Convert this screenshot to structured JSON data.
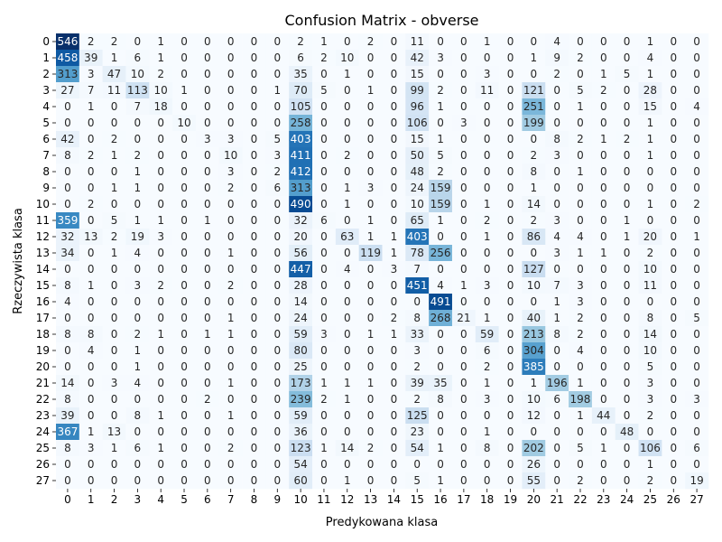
{
  "chart_data": {
    "type": "heatmap",
    "title": "Confusion Matrix - obverse",
    "xlabel": "Predykowana klasa",
    "ylabel": "Rzeczywista klasa",
    "x_ticks": [
      "0",
      "1",
      "2",
      "3",
      "4",
      "5",
      "6",
      "7",
      "8",
      "9",
      "10",
      "11",
      "12",
      "13",
      "14",
      "15",
      "16",
      "17",
      "18",
      "19",
      "20",
      "21",
      "22",
      "23",
      "24",
      "25",
      "26",
      "27"
    ],
    "y_ticks": [
      "0",
      "1",
      "2",
      "3",
      "4",
      "5",
      "6",
      "7",
      "8",
      "9",
      "10",
      "11",
      "12",
      "13",
      "14",
      "15",
      "16",
      "17",
      "18",
      "19",
      "20",
      "21",
      "22",
      "23",
      "24",
      "25",
      "26",
      "27"
    ],
    "colormap": {
      "low": "#f7fbff",
      "mid": "#6baed6",
      "high": "#08306b"
    },
    "value_range": [
      0,
      546
    ],
    "matrix": [
      [
        546,
        2,
        2,
        0,
        1,
        0,
        0,
        0,
        0,
        0,
        2,
        1,
        0,
        2,
        0,
        11,
        0,
        0,
        1,
        0,
        0,
        4,
        0,
        0,
        0,
        1,
        0,
        0
      ],
      [
        458,
        39,
        1,
        6,
        1,
        0,
        0,
        0,
        0,
        0,
        6,
        2,
        10,
        0,
        0,
        42,
        3,
        0,
        0,
        0,
        1,
        9,
        2,
        0,
        0,
        4,
        0,
        0
      ],
      [
        313,
        3,
        47,
        10,
        2,
        0,
        0,
        0,
        0,
        0,
        35,
        0,
        1,
        0,
        0,
        15,
        0,
        0,
        3,
        0,
        0,
        2,
        0,
        1,
        5,
        1,
        0,
        0
      ],
      [
        27,
        7,
        11,
        113,
        10,
        1,
        0,
        0,
        0,
        1,
        70,
        5,
        0,
        1,
        0,
        99,
        2,
        0,
        11,
        0,
        121,
        0,
        5,
        2,
        0,
        28,
        0,
        0
      ],
      [
        0,
        1,
        0,
        7,
        18,
        0,
        0,
        0,
        0,
        0,
        105,
        0,
        0,
        0,
        0,
        96,
        1,
        0,
        0,
        0,
        251,
        0,
        1,
        0,
        0,
        15,
        0,
        4
      ],
      [
        0,
        0,
        0,
        0,
        0,
        10,
        0,
        0,
        0,
        0,
        258,
        0,
        0,
        0,
        0,
        106,
        0,
        3,
        0,
        0,
        199,
        0,
        0,
        0,
        0,
        1,
        0,
        0
      ],
      [
        42,
        0,
        2,
        0,
        0,
        0,
        3,
        3,
        0,
        5,
        403,
        0,
        0,
        0,
        0,
        15,
        1,
        0,
        0,
        0,
        0,
        8,
        2,
        1,
        2,
        1,
        0,
        0
      ],
      [
        8,
        2,
        1,
        2,
        0,
        0,
        0,
        10,
        0,
        3,
        411,
        0,
        2,
        0,
        0,
        50,
        5,
        0,
        0,
        0,
        2,
        3,
        0,
        0,
        0,
        1,
        0,
        0
      ],
      [
        0,
        0,
        0,
        1,
        0,
        0,
        0,
        3,
        0,
        2,
        412,
        0,
        0,
        0,
        0,
        48,
        2,
        0,
        0,
        0,
        8,
        0,
        1,
        0,
        0,
        0,
        0,
        0
      ],
      [
        0,
        0,
        1,
        1,
        0,
        0,
        0,
        2,
        0,
        6,
        313,
        0,
        1,
        3,
        0,
        24,
        159,
        0,
        0,
        0,
        1,
        0,
        0,
        0,
        0,
        0,
        0,
        0
      ],
      [
        0,
        2,
        0,
        0,
        0,
        0,
        0,
        0,
        0,
        0,
        490,
        0,
        1,
        0,
        0,
        10,
        159,
        0,
        1,
        0,
        14,
        0,
        0,
        0,
        0,
        1,
        0,
        2
      ],
      [
        359,
        0,
        5,
        1,
        1,
        0,
        1,
        0,
        0,
        0,
        32,
        6,
        0,
        1,
        0,
        65,
        1,
        0,
        2,
        0,
        2,
        3,
        0,
        0,
        1,
        0,
        0,
        0
      ],
      [
        32,
        13,
        2,
        19,
        3,
        0,
        0,
        0,
        0,
        0,
        20,
        0,
        63,
        1,
        1,
        403,
        0,
        0,
        1,
        0,
        86,
        4,
        4,
        0,
        1,
        20,
        0,
        1
      ],
      [
        34,
        0,
        1,
        4,
        0,
        0,
        0,
        1,
        0,
        0,
        56,
        0,
        0,
        119,
        1,
        78,
        256,
        0,
        0,
        0,
        0,
        3,
        1,
        1,
        0,
        2,
        0,
        0
      ],
      [
        0,
        0,
        0,
        0,
        0,
        0,
        0,
        0,
        0,
        0,
        447,
        0,
        4,
        0,
        3,
        7,
        0,
        0,
        0,
        0,
        127,
        0,
        0,
        0,
        0,
        10,
        0,
        0
      ],
      [
        8,
        1,
        0,
        3,
        2,
        0,
        0,
        2,
        0,
        0,
        28,
        0,
        0,
        0,
        0,
        451,
        4,
        1,
        3,
        0,
        10,
        7,
        3,
        0,
        0,
        11,
        0,
        0
      ],
      [
        4,
        0,
        0,
        0,
        0,
        0,
        0,
        0,
        0,
        0,
        14,
        0,
        0,
        0,
        0,
        0,
        491,
        0,
        0,
        0,
        0,
        1,
        3,
        0,
        0,
        0,
        0,
        0
      ],
      [
        0,
        0,
        0,
        0,
        0,
        0,
        0,
        1,
        0,
        0,
        24,
        0,
        0,
        0,
        2,
        8,
        268,
        21,
        1,
        0,
        40,
        1,
        2,
        0,
        0,
        8,
        0,
        5
      ],
      [
        8,
        8,
        0,
        2,
        1,
        0,
        1,
        1,
        0,
        0,
        59,
        3,
        0,
        1,
        1,
        33,
        0,
        0,
        59,
        0,
        213,
        8,
        2,
        0,
        0,
        14,
        0,
        0
      ],
      [
        0,
        4,
        0,
        1,
        0,
        0,
        0,
        0,
        0,
        0,
        80,
        0,
        0,
        0,
        0,
        3,
        0,
        0,
        6,
        0,
        304,
        0,
        4,
        0,
        0,
        10,
        0,
        0
      ],
      [
        0,
        0,
        0,
        1,
        0,
        0,
        0,
        0,
        0,
        0,
        25,
        0,
        0,
        0,
        0,
        2,
        0,
        0,
        2,
        0,
        385,
        0,
        0,
        0,
        0,
        5,
        0,
        0
      ],
      [
        14,
        0,
        3,
        4,
        0,
        0,
        0,
        1,
        0,
        0,
        173,
        1,
        1,
        1,
        0,
        39,
        35,
        0,
        1,
        0,
        1,
        196,
        1,
        0,
        0,
        3,
        0,
        0
      ],
      [
        8,
        0,
        0,
        0,
        0,
        0,
        2,
        0,
        0,
        0,
        239,
        2,
        1,
        0,
        0,
        2,
        8,
        0,
        3,
        0,
        10,
        6,
        198,
        0,
        0,
        3,
        0,
        3
      ],
      [
        39,
        0,
        0,
        8,
        1,
        0,
        0,
        1,
        0,
        0,
        59,
        0,
        0,
        0,
        0,
        125,
        0,
        0,
        0,
        0,
        12,
        0,
        1,
        44,
        0,
        2,
        0,
        0
      ],
      [
        367,
        1,
        13,
        0,
        0,
        0,
        0,
        0,
        0,
        0,
        36,
        0,
        0,
        0,
        0,
        23,
        0,
        0,
        1,
        0,
        0,
        0,
        0,
        0,
        48,
        0,
        0,
        0
      ],
      [
        8,
        3,
        1,
        6,
        1,
        0,
        0,
        2,
        0,
        0,
        123,
        1,
        14,
        2,
        0,
        54,
        1,
        0,
        8,
        0,
        202,
        0,
        5,
        1,
        0,
        106,
        0,
        6
      ],
      [
        0,
        0,
        0,
        0,
        0,
        0,
        0,
        0,
        0,
        0,
        54,
        0,
        0,
        0,
        0,
        0,
        0,
        0,
        0,
        0,
        26,
        0,
        0,
        0,
        0,
        1,
        0,
        0
      ],
      [
        0,
        0,
        0,
        0,
        0,
        0,
        0,
        0,
        0,
        0,
        60,
        0,
        1,
        0,
        0,
        5,
        1,
        0,
        0,
        0,
        55,
        0,
        2,
        0,
        0,
        2,
        0,
        19
      ]
    ]
  }
}
